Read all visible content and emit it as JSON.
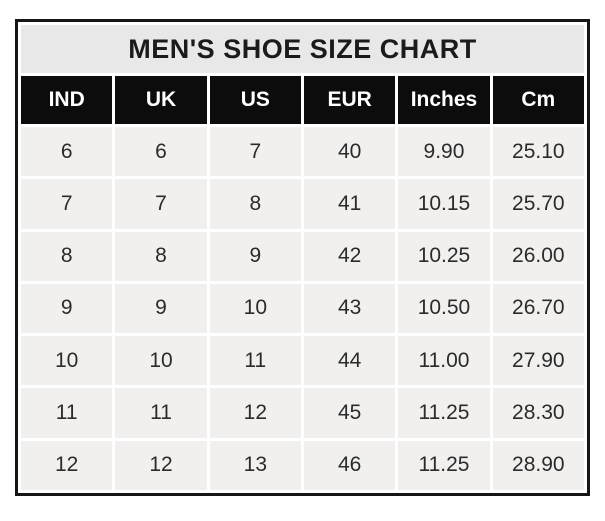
{
  "colors": {
    "page_bg": "#ffffff",
    "frame_border": "#161616",
    "title_bg": "#e9e8e8",
    "title_text": "#1b1b1b",
    "header_bg": "#0c0c0c",
    "header_text": "#ffffff",
    "cell_bg": "#f1f0ef",
    "grid_line": "#ffffff",
    "cell_text": "#2b2b2b"
  },
  "chart_data": {
    "type": "table",
    "title": "MEN'S SHOE SIZE CHART",
    "columns": [
      "IND",
      "UK",
      "US",
      "EUR",
      "Inches",
      "Cm"
    ],
    "rows": [
      [
        "6",
        "6",
        "7",
        "40",
        "9.90",
        "25.10"
      ],
      [
        "7",
        "7",
        "8",
        "41",
        "10.15",
        "25.70"
      ],
      [
        "8",
        "8",
        "9",
        "42",
        "10.25",
        "26.00"
      ],
      [
        "9",
        "9",
        "10",
        "43",
        "10.50",
        "26.70"
      ],
      [
        "10",
        "10",
        "11",
        "44",
        "11.00",
        "27.90"
      ],
      [
        "11",
        "11",
        "12",
        "45",
        "11.25",
        "28.30"
      ],
      [
        "12",
        "12",
        "13",
        "46",
        "11.25",
        "28.90"
      ]
    ]
  }
}
